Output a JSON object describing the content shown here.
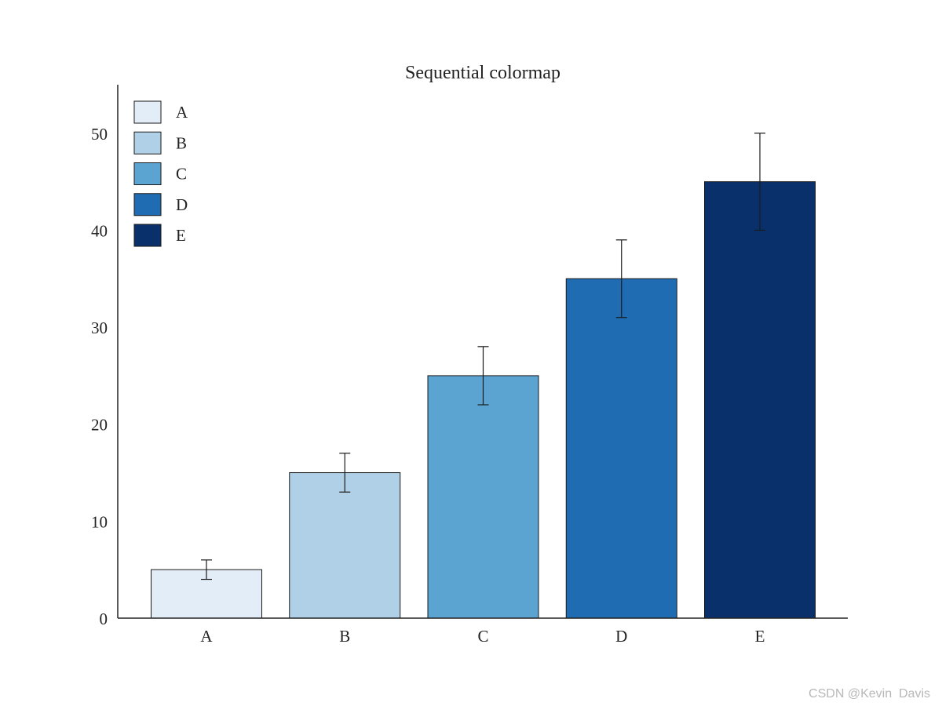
{
  "chart_data": {
    "type": "bar",
    "title": "Sequential colormap",
    "xlabel": "",
    "ylabel": "",
    "categories": [
      "A",
      "B",
      "C",
      "D",
      "E"
    ],
    "values": [
      5,
      15,
      25,
      35,
      45
    ],
    "errors": [
      1,
      2,
      3,
      4,
      5
    ],
    "colors": [
      "#e3edf8",
      "#afd0e6",
      "#5ba3d1",
      "#1f6cb2",
      "#0a306b"
    ],
    "ylim": [
      0,
      55
    ],
    "yticks": [
      0,
      10,
      20,
      30,
      40,
      50
    ],
    "grid": false,
    "legend": {
      "placement": "top-left",
      "entries": [
        "A",
        "B",
        "C",
        "D",
        "E"
      ]
    }
  },
  "watermark": "CSDN @Kevin  Davis"
}
